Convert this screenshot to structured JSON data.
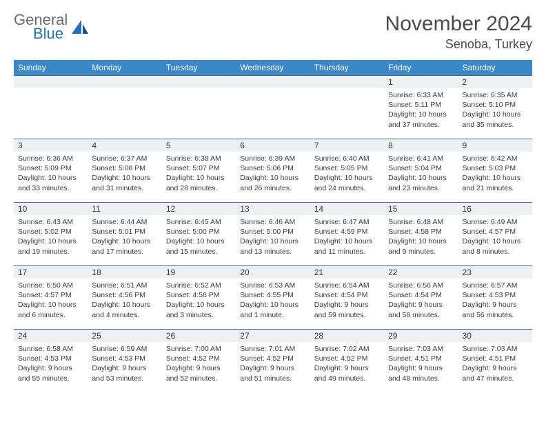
{
  "logo": {
    "general": "General",
    "blue": "Blue"
  },
  "title": "November 2024",
  "location": "Senoba, Turkey",
  "colors": {
    "header_blue": "#3b88c8",
    "logo_blue": "#2a6fb5",
    "logo_gray": "#6b6b6b",
    "daybar_bg": "#eef1f3",
    "daybar_border": "#4a6a85",
    "text": "#3a3a3a"
  },
  "days_of_week": [
    "Sunday",
    "Monday",
    "Tuesday",
    "Wednesday",
    "Thursday",
    "Friday",
    "Saturday"
  ],
  "weeks": [
    [
      null,
      null,
      null,
      null,
      null,
      {
        "n": "1",
        "sr": "6:33 AM",
        "ss": "5:11 PM",
        "dl": "10 hours and 37 minutes."
      },
      {
        "n": "2",
        "sr": "6:35 AM",
        "ss": "5:10 PM",
        "dl": "10 hours and 35 minutes."
      }
    ],
    [
      {
        "n": "3",
        "sr": "6:36 AM",
        "ss": "5:09 PM",
        "dl": "10 hours and 33 minutes."
      },
      {
        "n": "4",
        "sr": "6:37 AM",
        "ss": "5:08 PM",
        "dl": "10 hours and 31 minutes."
      },
      {
        "n": "5",
        "sr": "6:38 AM",
        "ss": "5:07 PM",
        "dl": "10 hours and 28 minutes."
      },
      {
        "n": "6",
        "sr": "6:39 AM",
        "ss": "5:06 PM",
        "dl": "10 hours and 26 minutes."
      },
      {
        "n": "7",
        "sr": "6:40 AM",
        "ss": "5:05 PM",
        "dl": "10 hours and 24 minutes."
      },
      {
        "n": "8",
        "sr": "6:41 AM",
        "ss": "5:04 PM",
        "dl": "10 hours and 23 minutes."
      },
      {
        "n": "9",
        "sr": "6:42 AM",
        "ss": "5:03 PM",
        "dl": "10 hours and 21 minutes."
      }
    ],
    [
      {
        "n": "10",
        "sr": "6:43 AM",
        "ss": "5:02 PM",
        "dl": "10 hours and 19 minutes."
      },
      {
        "n": "11",
        "sr": "6:44 AM",
        "ss": "5:01 PM",
        "dl": "10 hours and 17 minutes."
      },
      {
        "n": "12",
        "sr": "6:45 AM",
        "ss": "5:00 PM",
        "dl": "10 hours and 15 minutes."
      },
      {
        "n": "13",
        "sr": "6:46 AM",
        "ss": "5:00 PM",
        "dl": "10 hours and 13 minutes."
      },
      {
        "n": "14",
        "sr": "6:47 AM",
        "ss": "4:59 PM",
        "dl": "10 hours and 11 minutes."
      },
      {
        "n": "15",
        "sr": "6:48 AM",
        "ss": "4:58 PM",
        "dl": "10 hours and 9 minutes."
      },
      {
        "n": "16",
        "sr": "6:49 AM",
        "ss": "4:57 PM",
        "dl": "10 hours and 8 minutes."
      }
    ],
    [
      {
        "n": "17",
        "sr": "6:50 AM",
        "ss": "4:57 PM",
        "dl": "10 hours and 6 minutes."
      },
      {
        "n": "18",
        "sr": "6:51 AM",
        "ss": "4:56 PM",
        "dl": "10 hours and 4 minutes."
      },
      {
        "n": "19",
        "sr": "6:52 AM",
        "ss": "4:56 PM",
        "dl": "10 hours and 3 minutes."
      },
      {
        "n": "20",
        "sr": "6:53 AM",
        "ss": "4:55 PM",
        "dl": "10 hours and 1 minute."
      },
      {
        "n": "21",
        "sr": "6:54 AM",
        "ss": "4:54 PM",
        "dl": "9 hours and 59 minutes."
      },
      {
        "n": "22",
        "sr": "6:56 AM",
        "ss": "4:54 PM",
        "dl": "9 hours and 58 minutes."
      },
      {
        "n": "23",
        "sr": "6:57 AM",
        "ss": "4:53 PM",
        "dl": "9 hours and 56 minutes."
      }
    ],
    [
      {
        "n": "24",
        "sr": "6:58 AM",
        "ss": "4:53 PM",
        "dl": "9 hours and 55 minutes."
      },
      {
        "n": "25",
        "sr": "6:59 AM",
        "ss": "4:53 PM",
        "dl": "9 hours and 53 minutes."
      },
      {
        "n": "26",
        "sr": "7:00 AM",
        "ss": "4:52 PM",
        "dl": "9 hours and 52 minutes."
      },
      {
        "n": "27",
        "sr": "7:01 AM",
        "ss": "4:52 PM",
        "dl": "9 hours and 51 minutes."
      },
      {
        "n": "28",
        "sr": "7:02 AM",
        "ss": "4:52 PM",
        "dl": "9 hours and 49 minutes."
      },
      {
        "n": "29",
        "sr": "7:03 AM",
        "ss": "4:51 PM",
        "dl": "9 hours and 48 minutes."
      },
      {
        "n": "30",
        "sr": "7:03 AM",
        "ss": "4:51 PM",
        "dl": "9 hours and 47 minutes."
      }
    ]
  ],
  "labels": {
    "sunrise": "Sunrise:",
    "sunset": "Sunset:",
    "daylight": "Daylight:"
  }
}
